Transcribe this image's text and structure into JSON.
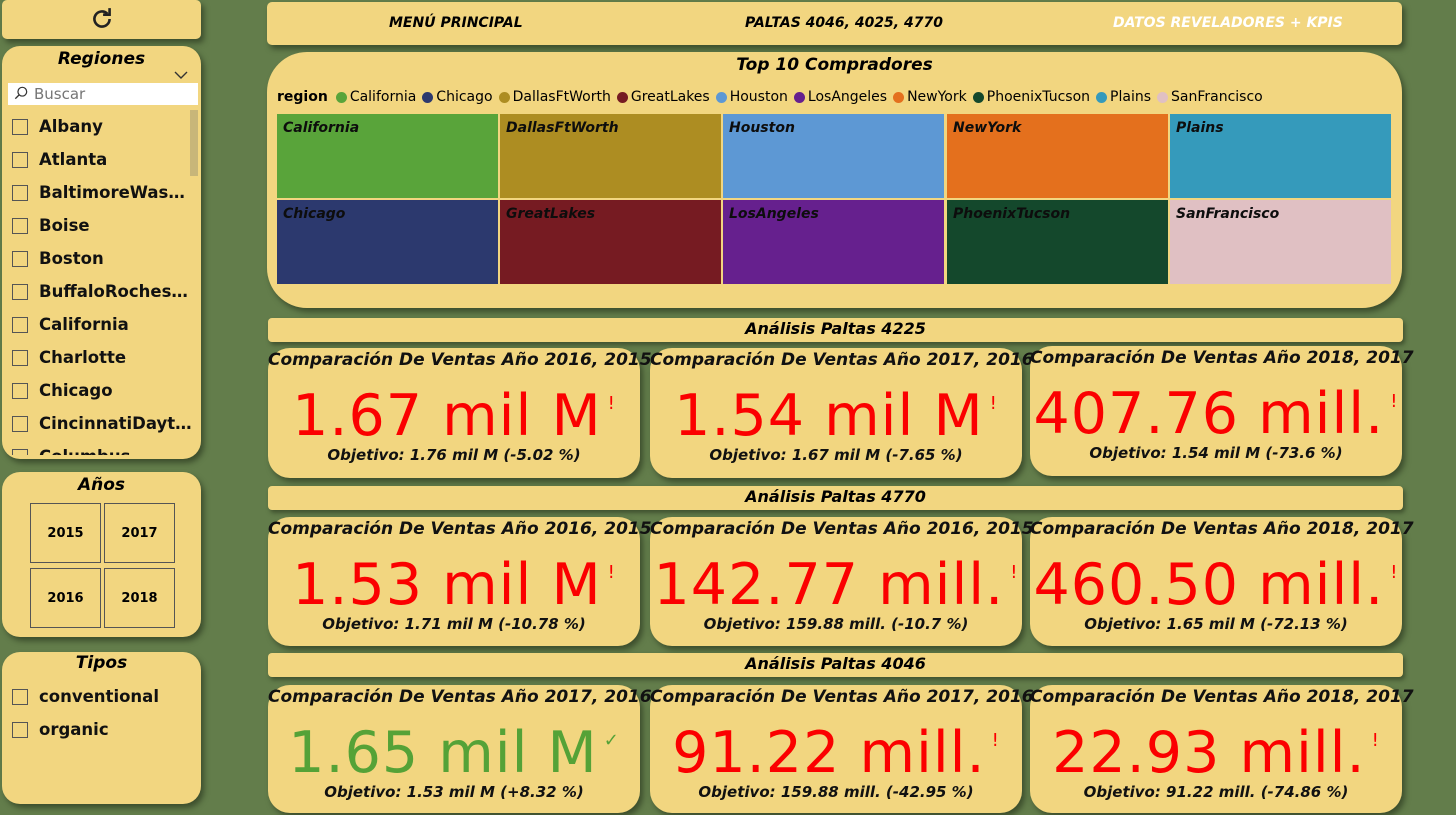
{
  "nav": {
    "menu": "MENÚ PRINCIPAL",
    "paltas": "PALTAS 4046, 4025, 4770",
    "datos": "DATOS REVELADORES + KPIS",
    "datos_color": "#ffffff"
  },
  "regions": {
    "title": "Regiones",
    "search_placeholder": "Buscar",
    "items": [
      "Albany",
      "Atlanta",
      "BaltimoreWashi...",
      "Boise",
      "Boston",
      "BuffaloRochester",
      "California",
      "Charlotte",
      "Chicago",
      "CincinnatiDayton",
      "Columbus"
    ]
  },
  "years": {
    "title": "Años",
    "items": [
      "2015",
      "2017",
      "2016",
      "2018"
    ]
  },
  "types": {
    "title": "Tipos",
    "items": [
      "conventional",
      "organic"
    ]
  },
  "treemap": {
    "title": "Top 10 Compradores",
    "legend_label": "region",
    "legend": [
      {
        "name": "California",
        "color": "#59a43a"
      },
      {
        "name": "Chicago",
        "color": "#2c396e"
      },
      {
        "name": "DallasFtWorth",
        "color": "#ad8d22"
      },
      {
        "name": "GreatLakes",
        "color": "#761b22"
      },
      {
        "name": "Houston",
        "color": "#5d98d4"
      },
      {
        "name": "LosAngeles",
        "color": "#66208e"
      },
      {
        "name": "NewYork",
        "color": "#e4701d"
      },
      {
        "name": "PhoenixTucson",
        "color": "#14482c"
      },
      {
        "name": "Plains",
        "color": "#359abb"
      },
      {
        "name": "SanFrancisco",
        "color": "#e0c0c3"
      }
    ],
    "tiles_row1": [
      {
        "name": "California",
        "color": "#59a43a"
      },
      {
        "name": "DallasFtWorth",
        "color": "#ad8d22"
      },
      {
        "name": "Houston",
        "color": "#5d98d4"
      },
      {
        "name": "NewYork",
        "color": "#e4701d"
      },
      {
        "name": "Plains",
        "color": "#359abb"
      }
    ],
    "tiles_row2": [
      {
        "name": "Chicago",
        "color": "#2c396e"
      },
      {
        "name": "GreatLakes",
        "color": "#761b22"
      },
      {
        "name": "LosAngeles",
        "color": "#66208e"
      },
      {
        "name": "PhoenixTucson",
        "color": "#14482c"
      },
      {
        "name": "SanFrancisco",
        "color": "#e0c0c3"
      }
    ]
  },
  "sections": [
    {
      "title": "Análisis Paltas 4225",
      "kpis": [
        {
          "title": "Comparación De Ventas Año 2016, 2015",
          "value": "1.67 mil M",
          "mark": "!",
          "status": "bad",
          "target": "Objetivo: 1.76 mil M (-5.02 %)"
        },
        {
          "title": "Comparación De Ventas Año 2017, 2016",
          "value": "1.54 mil M",
          "mark": "!",
          "status": "bad",
          "target": "Objetivo: 1.67 mil M (-7.65 %)"
        },
        {
          "title": "Comparación De Ventas Año 2018, 2017",
          "value": "407.76 mill.",
          "mark": "!",
          "status": "bad",
          "target": "Objetivo: 1.54 mil M (-73.6 %)"
        }
      ]
    },
    {
      "title": "Análisis Paltas 4770",
      "kpis": [
        {
          "title": "Comparación De Ventas Año 2016, 2015",
          "value": "1.53 mil M",
          "mark": "!",
          "status": "bad",
          "target": "Objetivo: 1.71 mil M (-10.78 %)"
        },
        {
          "title": "Comparación De Ventas Año 2016, 2015",
          "value": "142.77 mill.",
          "mark": "!",
          "status": "bad",
          "target": "Objetivo: 159.88 mill. (-10.7 %)"
        },
        {
          "title": "Comparación De Ventas Año 2018, 2017",
          "value": "460.50 mill.",
          "mark": "!",
          "status": "bad",
          "target": "Objetivo: 1.65 mil M (-72.13 %)"
        }
      ]
    },
    {
      "title": "Análisis Paltas 4046",
      "kpis": [
        {
          "title": "Comparación De Ventas Año 2017, 2016",
          "value": "1.65 mil M",
          "mark": "✓",
          "status": "good",
          "target": "Objetivo: 1.53 mil M (+8.32 %)"
        },
        {
          "title": "Comparación De Ventas Año 2017, 2016",
          "value": "91.22 mill.",
          "mark": "!",
          "status": "bad",
          "target": "Objetivo: 159.88 mill. (-42.95 %)"
        },
        {
          "title": "Comparación De Ventas Año 2018, 2017",
          "value": "22.93 mill.",
          "mark": "!",
          "status": "bad",
          "target": "Objetivo: 91.22 mill. (-74.86 %)"
        }
      ]
    }
  ],
  "colors": {
    "background": "#637d4b",
    "panel": "#f2d680",
    "bad": "#fb0000",
    "good": "#55a237"
  }
}
